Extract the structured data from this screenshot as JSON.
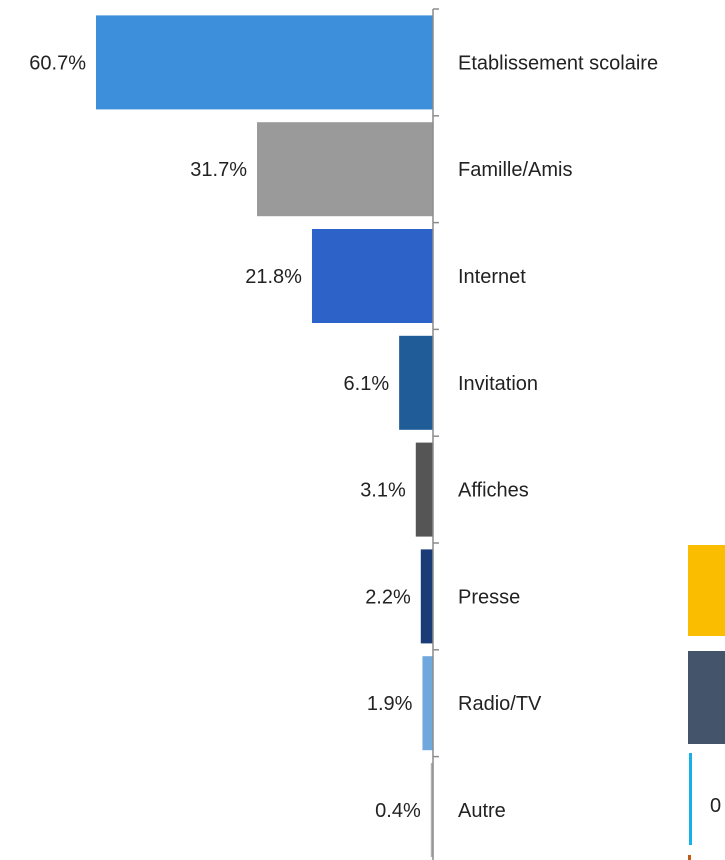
{
  "chart_data": {
    "type": "bar",
    "orientation": "horizontal",
    "grid": false,
    "legend": "none",
    "xlim": [
      0,
      60.7
    ],
    "categories": [
      "Etablissement scolaire",
      "Famille/Amis",
      "Internet",
      "Invitation",
      "Affiches",
      "Presse",
      "Radio/TV",
      "Autre"
    ],
    "values": [
      60.7,
      31.7,
      21.8,
      6.1,
      3.1,
      2.2,
      1.9,
      0.4
    ],
    "value_labels": [
      "60.7%",
      "31.7%",
      "21.8%",
      "6.1%",
      "3.1%",
      "2.2%",
      "1.9%",
      "0.4%"
    ],
    "bar_colors": [
      "#3d8fdc",
      "#9a9a9a",
      "#2d62c8",
      "#1f5c98",
      "#555555",
      "#1a3a78",
      "#6fa8dc",
      "#b0b0b0"
    ]
  },
  "side_fragment": {
    "swatch_colors": [
      "#fbbd00",
      "#44546a",
      "#17b0e6",
      "#c55a11"
    ],
    "clipped_label": "0"
  }
}
